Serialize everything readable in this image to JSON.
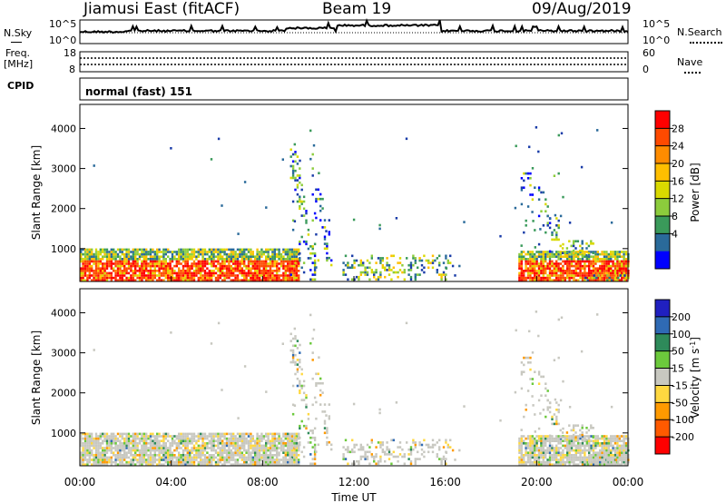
{
  "header": {
    "station": "Jiamusi East (fitACF)",
    "beam": "Beam 19",
    "date": "09/Aug/2019"
  },
  "noise_panel": {
    "left_label": "N.Sky",
    "right_label": "N.Search",
    "ticks_left": [
      "10^5",
      "10^0"
    ],
    "ticks_right": [
      "10^5",
      "10^0"
    ]
  },
  "freq_panel": {
    "label_line1": "Freq.",
    "label_line2": "[MHz]",
    "ticks_left": [
      "18",
      "8"
    ],
    "ticks_right": [
      "60",
      "0"
    ],
    "right_label": "Nave"
  },
  "cpid": {
    "label": "CPID",
    "value": "normal (fast) 151"
  },
  "chart_data": [
    {
      "type": "heatmap",
      "title": "",
      "quantity": "Power",
      "ylabel": "Slant Range [km]",
      "yticks": [
        "1000",
        "2000",
        "3000",
        "4000"
      ],
      "ylim": [
        180,
        4600
      ],
      "xlim_hours": [
        0,
        24
      ],
      "colorbar_label": "Power [dB]",
      "colorbar_ticks": [
        "28",
        "24",
        "20",
        "16",
        "12",
        "8",
        "4"
      ],
      "colorbar_colors": [
        "#ff0000",
        "#ff4a00",
        "#ff8c00",
        "#ffbf00",
        "#d9d900",
        "#8ccc3c",
        "#3a9a5a",
        "#2a6a9a",
        "#1a3ca8",
        "#0000ff"
      ]
    },
    {
      "type": "heatmap",
      "title": "",
      "quantity": "Velocity",
      "ylabel": "Slant Range [km]",
      "yticks": [
        "1000",
        "2000",
        "3000",
        "4000"
      ],
      "ylim": [
        180,
        4600
      ],
      "xlim_hours": [
        0,
        24
      ],
      "xlabel": "Time UT",
      "xticks": [
        "00:00",
        "04:00",
        "08:00",
        "12:00",
        "16:00",
        "20:00",
        "00:00"
      ],
      "colorbar_label": "Velocity [m s^-1]",
      "colorbar_ticks": [
        "200",
        "100",
        "50",
        "15",
        "-15",
        "-50",
        "-100",
        "-200"
      ],
      "colorbar_colors": [
        "#2020c0",
        "#2f6ab4",
        "#2e8a5a",
        "#6cc93c",
        "#c8c8c0",
        "#ffd840",
        "#ff9a00",
        "#ff5a00",
        "#ff0000"
      ]
    }
  ]
}
